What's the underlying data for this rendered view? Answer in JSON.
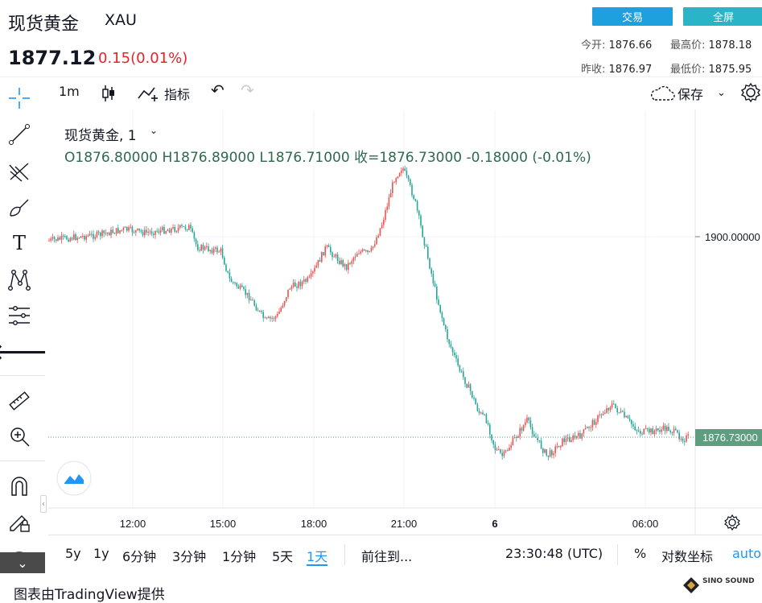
{
  "header": {
    "title": "现货黄金",
    "symbol": "XAU",
    "price": "1877.12",
    "change": "0.15(0.01%)",
    "buttons": {
      "trade": "交易",
      "fullscreen": "全屏"
    },
    "stats": {
      "open_label": "今开:",
      "open_value": "1876.66",
      "high_label": "最高价:",
      "high_value": "1878.18",
      "prev_close_label": "昨收:",
      "prev_close_value": "1876.97",
      "low_label": "最低价:",
      "low_value": "1875.95"
    }
  },
  "toolbar": {
    "interval": "1m",
    "indicators": "指标",
    "save": "保存"
  },
  "legend": {
    "title": "现货黄金, 1",
    "ohlc": "O1876.80000   H1876.89000   L1876.71000   收=1876.73000   -0.18000 (-0.01%)"
  },
  "chart_data": {
    "type": "candlestick",
    "price_axis": {
      "labels": [
        "1900.00000"
      ],
      "last_price_label": "1876.73000"
    },
    "time_axis": {
      "labels": [
        "12:00",
        "15:00",
        "18:00",
        "21:00",
        "6",
        "06:00"
      ]
    },
    "colors": {
      "up": "#ef5350",
      "down": "#26a69a",
      "last_price": "#5f9d80"
    }
  },
  "bottom_bar": {
    "ranges": [
      "5y",
      "1y",
      "6分钟",
      "3分钟",
      "1分钟",
      "5天",
      "1天"
    ],
    "active_range": "1天",
    "goto": "前往到...",
    "time": "23:30:48 (UTC)",
    "percent": "%",
    "log": "对数坐标",
    "auto": "auto"
  },
  "footer": {
    "credit": "图表由TradingView提供",
    "watermark": "SINO SOUND"
  }
}
